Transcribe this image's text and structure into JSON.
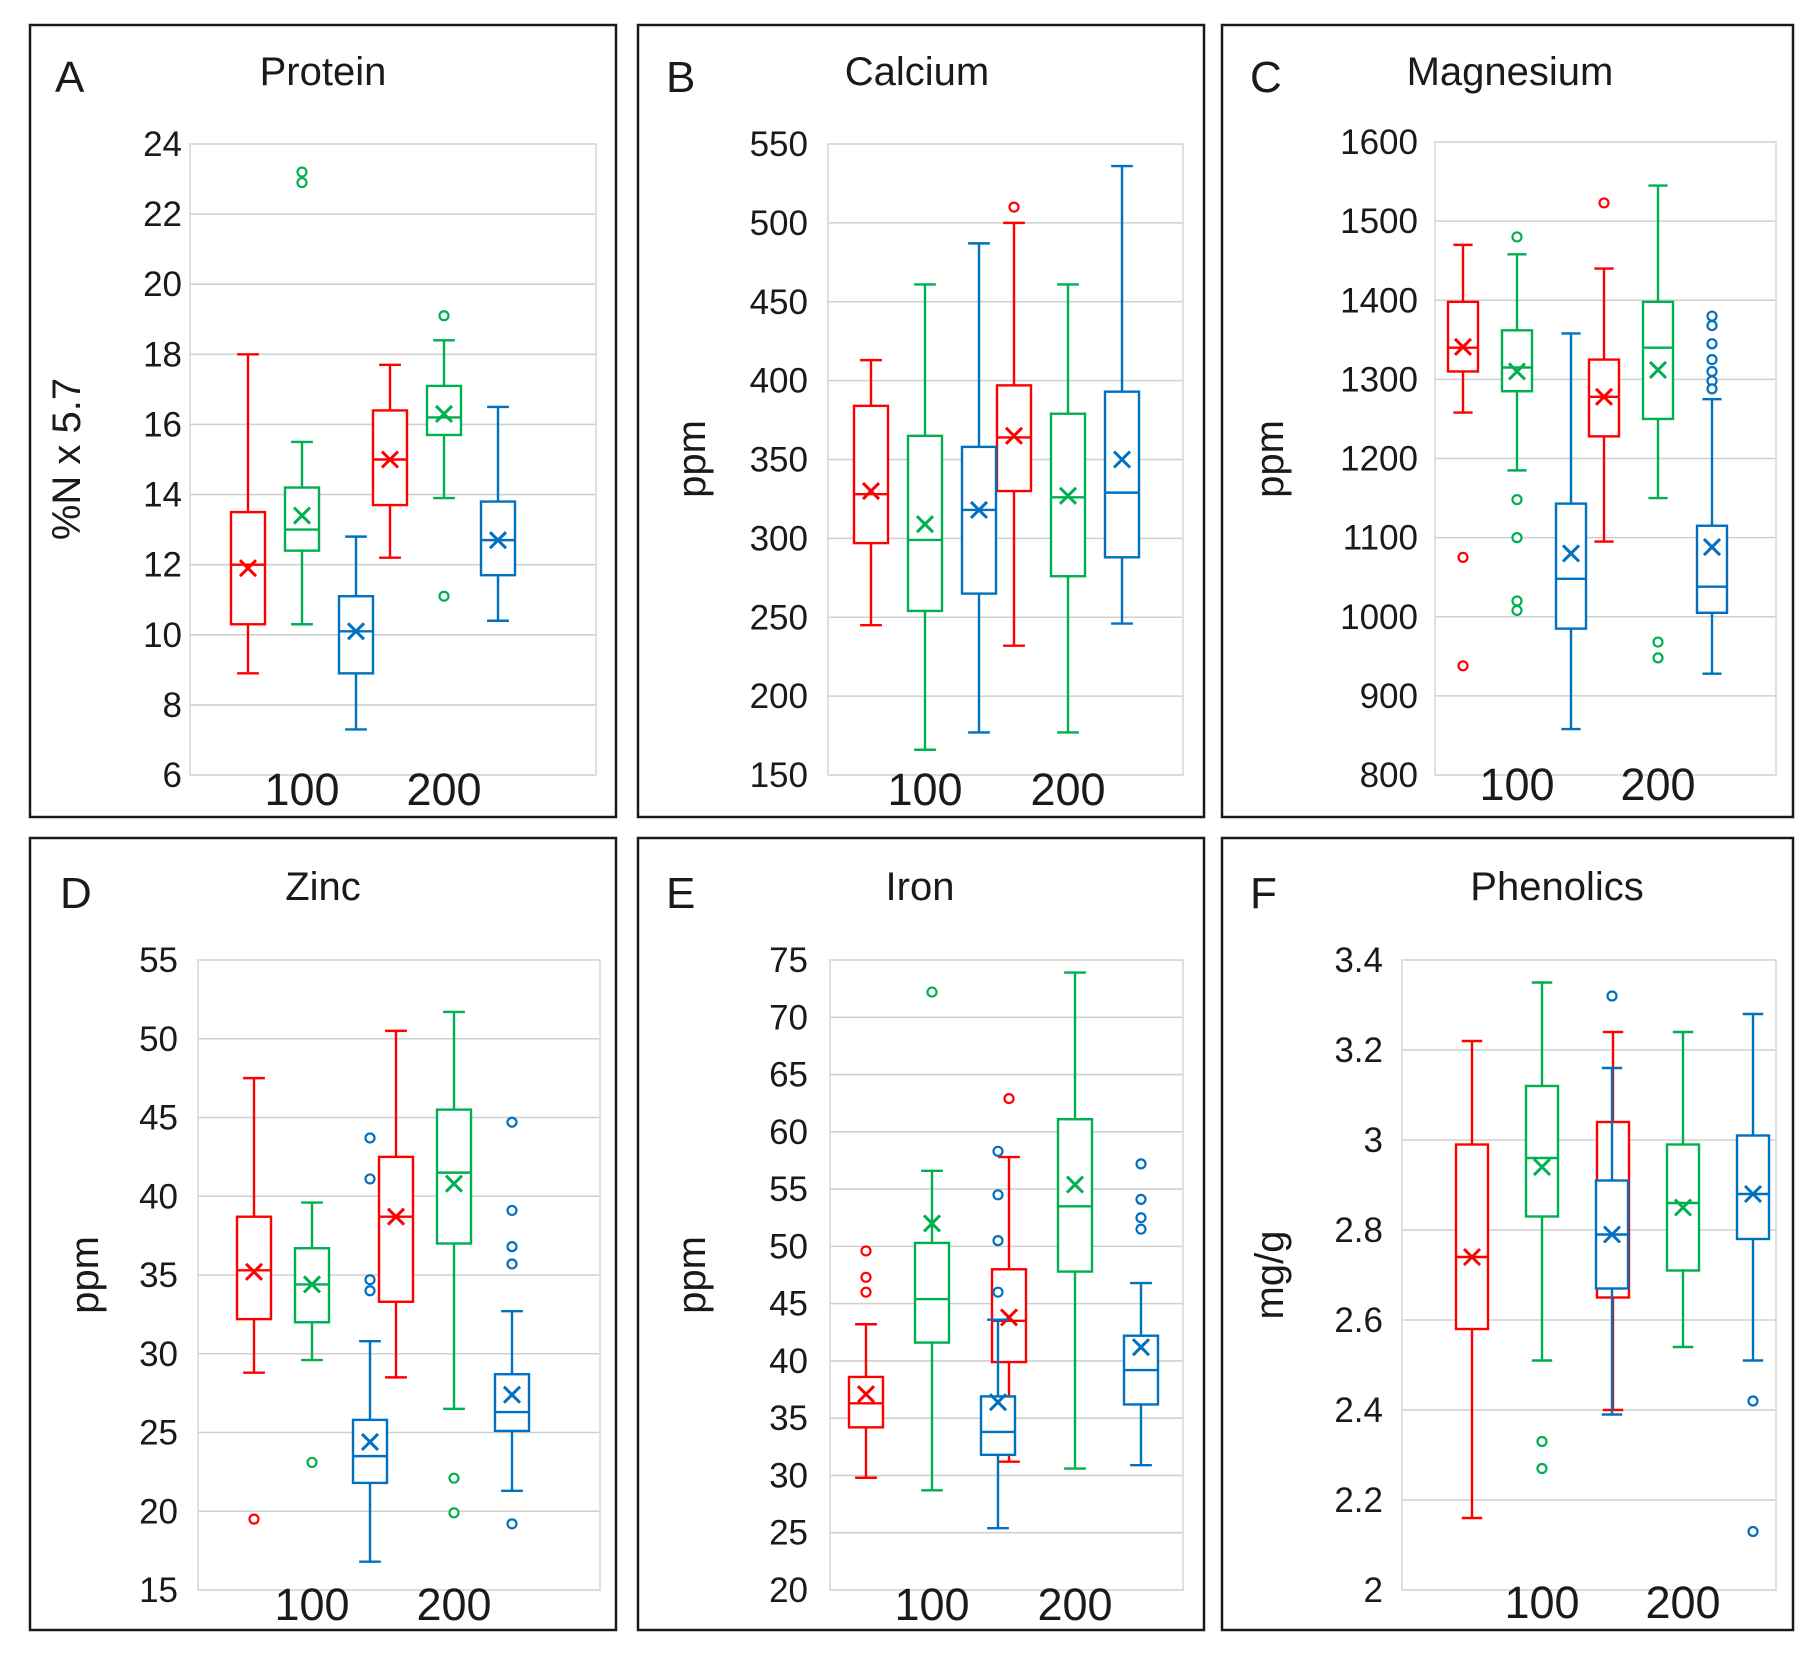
{
  "colors": {
    "red": "#ff0000",
    "green": "#00b050",
    "blue": "#0070c0"
  },
  "chart_data": [
    {
      "type": "boxplot",
      "panel": "A",
      "title": "Protein",
      "ylabel": "%N x 5.7",
      "ylim": [
        6,
        24
      ],
      "yticks": [
        "6",
        "8",
        "10",
        "12",
        "14",
        "16",
        "18",
        "20",
        "22",
        "24"
      ],
      "categories": [
        "100",
        "200"
      ],
      "series": [
        {
          "name": "red",
          "boxes": [
            {
              "min": 8.9,
              "q1": 10.3,
              "median": 12.0,
              "q3": 13.5,
              "max": 18.0,
              "mean": 11.9,
              "outliers": []
            },
            {
              "min": 12.2,
              "q1": 13.7,
              "median": 15.0,
              "q3": 16.4,
              "max": 17.7,
              "mean": 15.0,
              "outliers": []
            }
          ]
        },
        {
          "name": "green",
          "boxes": [
            {
              "min": 10.3,
              "q1": 12.4,
              "median": 13.0,
              "q3": 14.2,
              "max": 15.5,
              "mean": 13.4,
              "outliers": [
                22.9,
                23.2
              ]
            },
            {
              "min": 13.9,
              "q1": 15.7,
              "median": 16.2,
              "q3": 17.1,
              "max": 18.4,
              "mean": 16.3,
              "outliers": [
                11.1,
                19.1
              ]
            }
          ]
        },
        {
          "name": "blue",
          "boxes": [
            {
              "min": 7.3,
              "q1": 8.9,
              "median": 10.1,
              "q3": 11.1,
              "max": 12.8,
              "mean": 10.1,
              "outliers": []
            },
            {
              "min": 10.4,
              "q1": 11.7,
              "median": 12.7,
              "q3": 13.8,
              "max": 16.5,
              "mean": 12.7,
              "outliers": []
            }
          ]
        }
      ]
    },
    {
      "type": "boxplot",
      "panel": "B",
      "title": "Calcium",
      "ylabel": "ppm",
      "ylim": [
        150,
        550
      ],
      "yticks": [
        "150",
        "200",
        "250",
        "300",
        "350",
        "400",
        "450",
        "500",
        "550"
      ],
      "categories": [
        "100",
        "200"
      ],
      "series": [
        {
          "name": "red",
          "boxes": [
            {
              "min": 245,
              "q1": 297,
              "median": 328,
              "q3": 384,
              "max": 413,
              "mean": 330,
              "outliers": []
            },
            {
              "min": 232,
              "q1": 330,
              "median": 364,
              "q3": 397,
              "max": 500,
              "mean": 365,
              "outliers": [
                510
              ]
            }
          ]
        },
        {
          "name": "green",
          "boxes": [
            {
              "min": 166,
              "q1": 254,
              "median": 299,
              "q3": 365,
              "max": 461,
              "mean": 309,
              "outliers": []
            },
            {
              "min": 177,
              "q1": 276,
              "median": 326,
              "q3": 379,
              "max": 461,
              "mean": 327,
              "outliers": []
            }
          ]
        },
        {
          "name": "blue",
          "boxes": [
            {
              "min": 177,
              "q1": 265,
              "median": 318,
              "q3": 358,
              "max": 487,
              "mean": 318,
              "outliers": []
            },
            {
              "min": 246,
              "q1": 288,
              "median": 329,
              "q3": 393,
              "max": 536,
              "mean": 350,
              "outliers": []
            }
          ]
        }
      ]
    },
    {
      "type": "boxplot",
      "panel": "C",
      "title": "Magnesium",
      "ylabel": "ppm",
      "ylim": [
        800,
        1600
      ],
      "yticks": [
        "800",
        "900",
        "1000",
        "1100",
        "1200",
        "1300",
        "1400",
        "1500",
        "1600"
      ],
      "categories": [
        "100",
        "200"
      ],
      "series": [
        {
          "name": "red",
          "boxes": [
            {
              "min": 1258,
              "q1": 1310,
              "median": 1340,
              "q3": 1398,
              "max": 1470,
              "mean": 1341,
              "outliers": [
                1075,
                938
              ]
            },
            {
              "min": 1095,
              "q1": 1228,
              "median": 1278,
              "q3": 1325,
              "max": 1440,
              "mean": 1278,
              "outliers": [
                1523
              ]
            }
          ]
        },
        {
          "name": "green",
          "boxes": [
            {
              "min": 1185,
              "q1": 1285,
              "median": 1315,
              "q3": 1362,
              "max": 1458,
              "mean": 1310,
              "outliers": [
                1480,
                1148,
                1100,
                1020,
                1008
              ]
            },
            {
              "min": 1150,
              "q1": 1250,
              "median": 1340,
              "q3": 1398,
              "max": 1545,
              "mean": 1312,
              "outliers": [
                968,
                948
              ]
            }
          ]
        },
        {
          "name": "blue",
          "boxes": [
            {
              "min": 858,
              "q1": 985,
              "median": 1048,
              "q3": 1143,
              "max": 1358,
              "mean": 1080,
              "outliers": []
            },
            {
              "min": 928,
              "q1": 1005,
              "median": 1038,
              "q3": 1115,
              "max": 1275,
              "mean": 1088,
              "outliers": [
                1380,
                1368,
                1345,
                1325,
                1310,
                1298,
                1288
              ]
            }
          ]
        }
      ]
    },
    {
      "type": "boxplot",
      "panel": "D",
      "title": "Zinc",
      "ylabel": "ppm",
      "ylim": [
        15,
        55
      ],
      "yticks": [
        "15",
        "20",
        "25",
        "30",
        "35",
        "40",
        "45",
        "50",
        "55"
      ],
      "categories": [
        "100",
        "200"
      ],
      "series": [
        {
          "name": "red",
          "boxes": [
            {
              "min": 28.8,
              "q1": 32.2,
              "median": 35.3,
              "q3": 38.7,
              "max": 47.5,
              "mean": 35.2,
              "outliers": [
                19.5
              ]
            },
            {
              "min": 28.5,
              "q1": 33.3,
              "median": 38.7,
              "q3": 42.5,
              "max": 50.5,
              "mean": 38.7,
              "outliers": []
            }
          ]
        },
        {
          "name": "green",
          "boxes": [
            {
              "min": 29.6,
              "q1": 32.0,
              "median": 34.4,
              "q3": 36.7,
              "max": 39.6,
              "mean": 34.4,
              "outliers": [
                23.1
              ]
            },
            {
              "min": 26.5,
              "q1": 37.0,
              "median": 41.5,
              "q3": 45.5,
              "max": 51.7,
              "mean": 40.8,
              "outliers": [
                22.1,
                19.9
              ]
            }
          ]
        },
        {
          "name": "blue",
          "boxes": [
            {
              "min": 16.8,
              "q1": 21.8,
              "median": 23.5,
              "q3": 25.8,
              "max": 30.8,
              "mean": 24.4,
              "outliers": [
                43.7,
                41.1,
                34.7,
                34.0
              ]
            },
            {
              "min": 21.3,
              "q1": 25.1,
              "median": 26.3,
              "q3": 28.7,
              "max": 32.7,
              "mean": 27.4,
              "outliers": [
                44.7,
                39.1,
                36.8,
                35.7,
                19.2
              ]
            }
          ]
        }
      ]
    },
    {
      "type": "boxplot",
      "panel": "E",
      "title": "Iron",
      "ylabel": "ppm",
      "ylim": [
        20,
        75
      ],
      "yticks": [
        "20",
        "25",
        "30",
        "35",
        "40",
        "45",
        "50",
        "55",
        "60",
        "65",
        "70",
        "75"
      ],
      "categories": [
        "100",
        "200"
      ],
      "series": [
        {
          "name": "red",
          "boxes": [
            {
              "min": 29.8,
              "q1": 34.2,
              "median": 36.3,
              "q3": 38.6,
              "max": 43.2,
              "mean": 37.1,
              "outliers": [
                49.6,
                47.3,
                46.0
              ]
            },
            {
              "min": 31.2,
              "q1": 39.9,
              "median": 43.5,
              "q3": 48.0,
              "max": 57.8,
              "mean": 43.8,
              "outliers": [
                62.9
              ]
            }
          ]
        },
        {
          "name": "green",
          "boxes": [
            {
              "min": 28.7,
              "q1": 41.6,
              "median": 45.4,
              "q3": 50.3,
              "max": 56.6,
              "mean": 52.0,
              "outliers": [
                72.2
              ]
            },
            {
              "min": 30.6,
              "q1": 47.8,
              "median": 53.5,
              "q3": 61.1,
              "max": 73.9,
              "mean": 55.4,
              "outliers": []
            }
          ]
        },
        {
          "name": "blue",
          "boxes": [
            {
              "min": 25.4,
              "q1": 31.8,
              "median": 33.8,
              "q3": 36.9,
              "max": 43.6,
              "mean": 36.4,
              "outliers": [
                58.3,
                54.5,
                50.5,
                46.0
              ]
            },
            {
              "min": 30.9,
              "q1": 36.2,
              "median": 39.2,
              "q3": 42.2,
              "max": 46.8,
              "mean": 41.2,
              "outliers": [
                57.2,
                54.1,
                52.5,
                51.5
              ]
            }
          ]
        }
      ]
    },
    {
      "type": "boxplot",
      "panel": "F",
      "title": "Phenolics",
      "ylabel": "mg/g",
      "ylim": [
        2,
        3.4
      ],
      "yticks": [
        "2",
        "2.2",
        "2.4",
        "2.6",
        "2.8",
        "3",
        "3.2",
        "3.4"
      ],
      "categories": [
        "100",
        "200"
      ],
      "series": [
        {
          "name": "red",
          "boxes": [
            {
              "min": 2.16,
              "q1": 2.58,
              "median": 2.74,
              "q3": 2.99,
              "max": 3.22,
              "mean": 2.74,
              "outliers": []
            },
            {
              "min": 2.4,
              "q1": 2.65,
              "median": 2.84,
              "q3": 3.04,
              "max": 3.24,
              "mean": 2.83,
              "outliers": []
            }
          ]
        },
        {
          "name": "green",
          "boxes": [
            {
              "min": 2.51,
              "q1": 2.83,
              "median": 2.96,
              "q3": 3.12,
              "max": 3.35,
              "mean": 2.94,
              "outliers": [
                2.33,
                2.27
              ]
            },
            {
              "min": 2.54,
              "q1": 2.71,
              "median": 2.86,
              "q3": 2.99,
              "max": 3.24,
              "mean": 2.85,
              "outliers": []
            }
          ]
        },
        {
          "name": "blue",
          "boxes": [
            {
              "min": 2.39,
              "q1": 2.67,
              "median": 2.79,
              "q3": 2.91,
              "max": 3.16,
              "mean": 2.79,
              "outliers": [
                3.32
              ]
            },
            {
              "min": 2.51,
              "q1": 2.78,
              "median": 2.88,
              "q3": 3.01,
              "max": 3.28,
              "mean": 2.88,
              "outliers": [
                2.42,
                2.13
              ]
            }
          ]
        }
      ]
    }
  ]
}
